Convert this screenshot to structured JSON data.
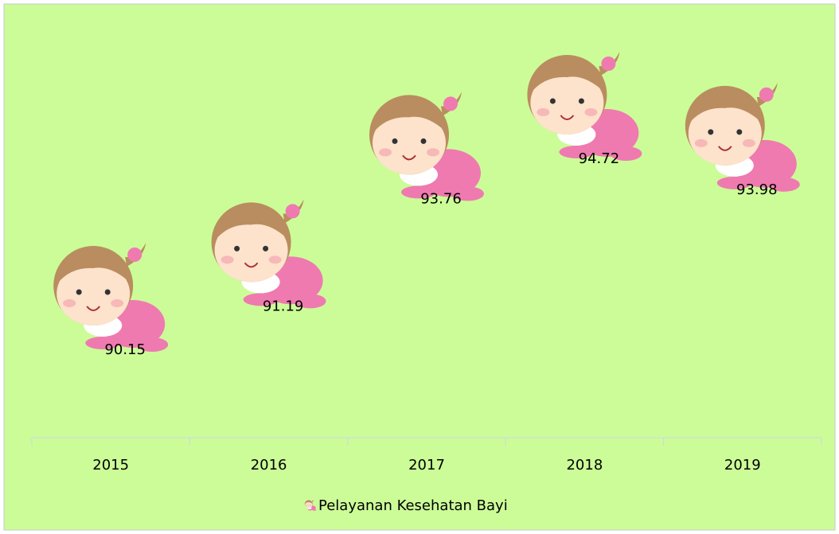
{
  "chart_data": {
    "type": "scatter",
    "categories": [
      "2015",
      "2016",
      "2017",
      "2018",
      "2019"
    ],
    "series": [
      {
        "name": "Pelayanan Kesehatan Bayi",
        "color": "#ef7ab0",
        "values": [
          90.15,
          91.19,
          93.76,
          94.72,
          93.98
        ]
      }
    ],
    "background": "#ccfc98"
  }
}
